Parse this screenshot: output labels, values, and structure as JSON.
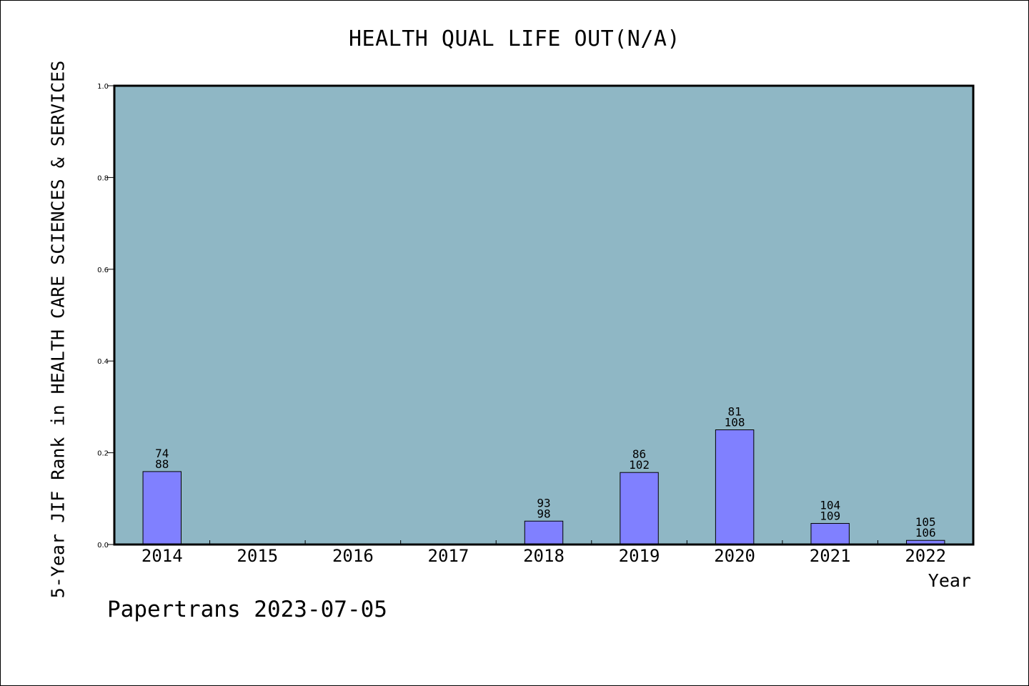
{
  "chart_data": {
    "type": "bar",
    "title": "HEALTH QUAL LIFE OUT(N/A)",
    "ylabel": "5-Year JIF Rank in HEALTH CARE SCIENCES & SERVICES",
    "xlabel": "Year",
    "categories": [
      "2014",
      "2015",
      "2016",
      "2017",
      "2018",
      "2019",
      "2020",
      "2021",
      "2022"
    ],
    "values": [
      0.159,
      0,
      0,
      0,
      0.051,
      0.157,
      0.25,
      0.046,
      0.009
    ],
    "bar_labels_top": [
      "74",
      "",
      "",
      "",
      "93",
      "86",
      "81",
      "104",
      "105"
    ],
    "bar_labels_bottom": [
      "88",
      "",
      "",
      "",
      "98",
      "102",
      "108",
      "109",
      "106"
    ],
    "ylim": [
      0,
      1.0
    ],
    "yticks": [
      "0.0",
      "0.2",
      "0.4",
      "0.6",
      "0.8",
      "1.0"
    ],
    "grid": false,
    "colors": {
      "plot_background": "#8fb7c5",
      "bar_fill": "#8080ff",
      "bar_stroke": "#000000"
    }
  },
  "footer": {
    "text": "Papertrans 2023-07-05"
  }
}
